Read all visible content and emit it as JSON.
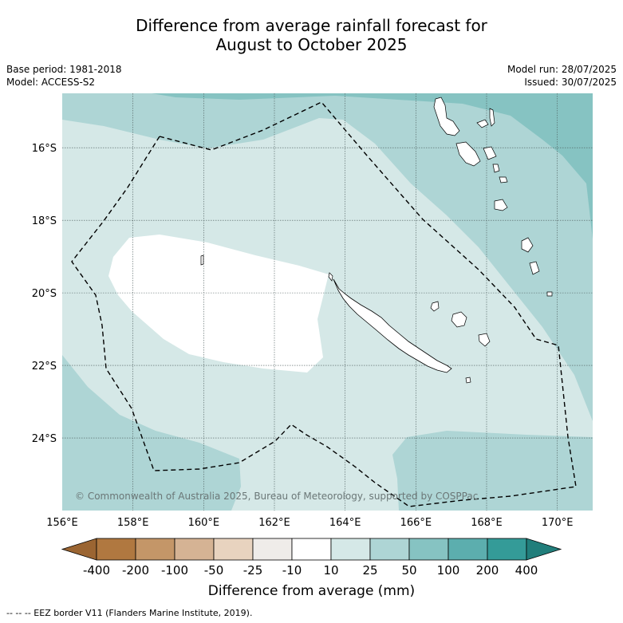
{
  "title_line1": "Difference from average rainfall forecast for",
  "title_line2": "August to October 2025",
  "base_period": "Base period: 1981-2018",
  "model": "Model: ACCESS-S2",
  "model_run": "Model run: 28/07/2025",
  "issued": "Issued: 30/07/2025",
  "copyright": "© Commonwealth of Australia 2025, Bureau of Meteorology, supported by COSPPac",
  "map": {
    "lon_range": [
      156,
      171
    ],
    "lat_range": [
      -26.0,
      -14.5
    ],
    "lon_ticks": [
      {
        "value": 156,
        "label": "156°E"
      },
      {
        "value": 158,
        "label": "158°E"
      },
      {
        "value": 160,
        "label": "160°E"
      },
      {
        "value": 162,
        "label": "162°E"
      },
      {
        "value": 164,
        "label": "164°E"
      },
      {
        "value": 166,
        "label": "166°E"
      },
      {
        "value": 168,
        "label": "168°E"
      },
      {
        "value": 170,
        "label": "170°E"
      }
    ],
    "lat_ticks": [
      {
        "value": -16,
        "label": "16°S"
      },
      {
        "value": -18,
        "label": "18°S"
      },
      {
        "value": -20,
        "label": "20°S"
      },
      {
        "value": -22,
        "label": "22°S"
      },
      {
        "value": -24,
        "label": "24°S"
      }
    ],
    "grid": true
  },
  "colorbar": {
    "labels": [
      "-400",
      "-200",
      "-100",
      "-50",
      "-25",
      "-10",
      "10",
      "25",
      "50",
      "100",
      "200",
      "400"
    ],
    "colors": [
      "#9b6532",
      "#b07840",
      "#c49668",
      "#d5b394",
      "#e8d3bf",
      "#efece9",
      "#ffffff",
      "#d5e8e7",
      "#aed5d5",
      "#86c3c2",
      "#5caeae",
      "#349b98",
      "#217e7b"
    ],
    "title": "Difference from average (mm)"
  },
  "footer": "-- -- -- EEZ border V11 (Flanders Marine Institute, 2019)."
}
